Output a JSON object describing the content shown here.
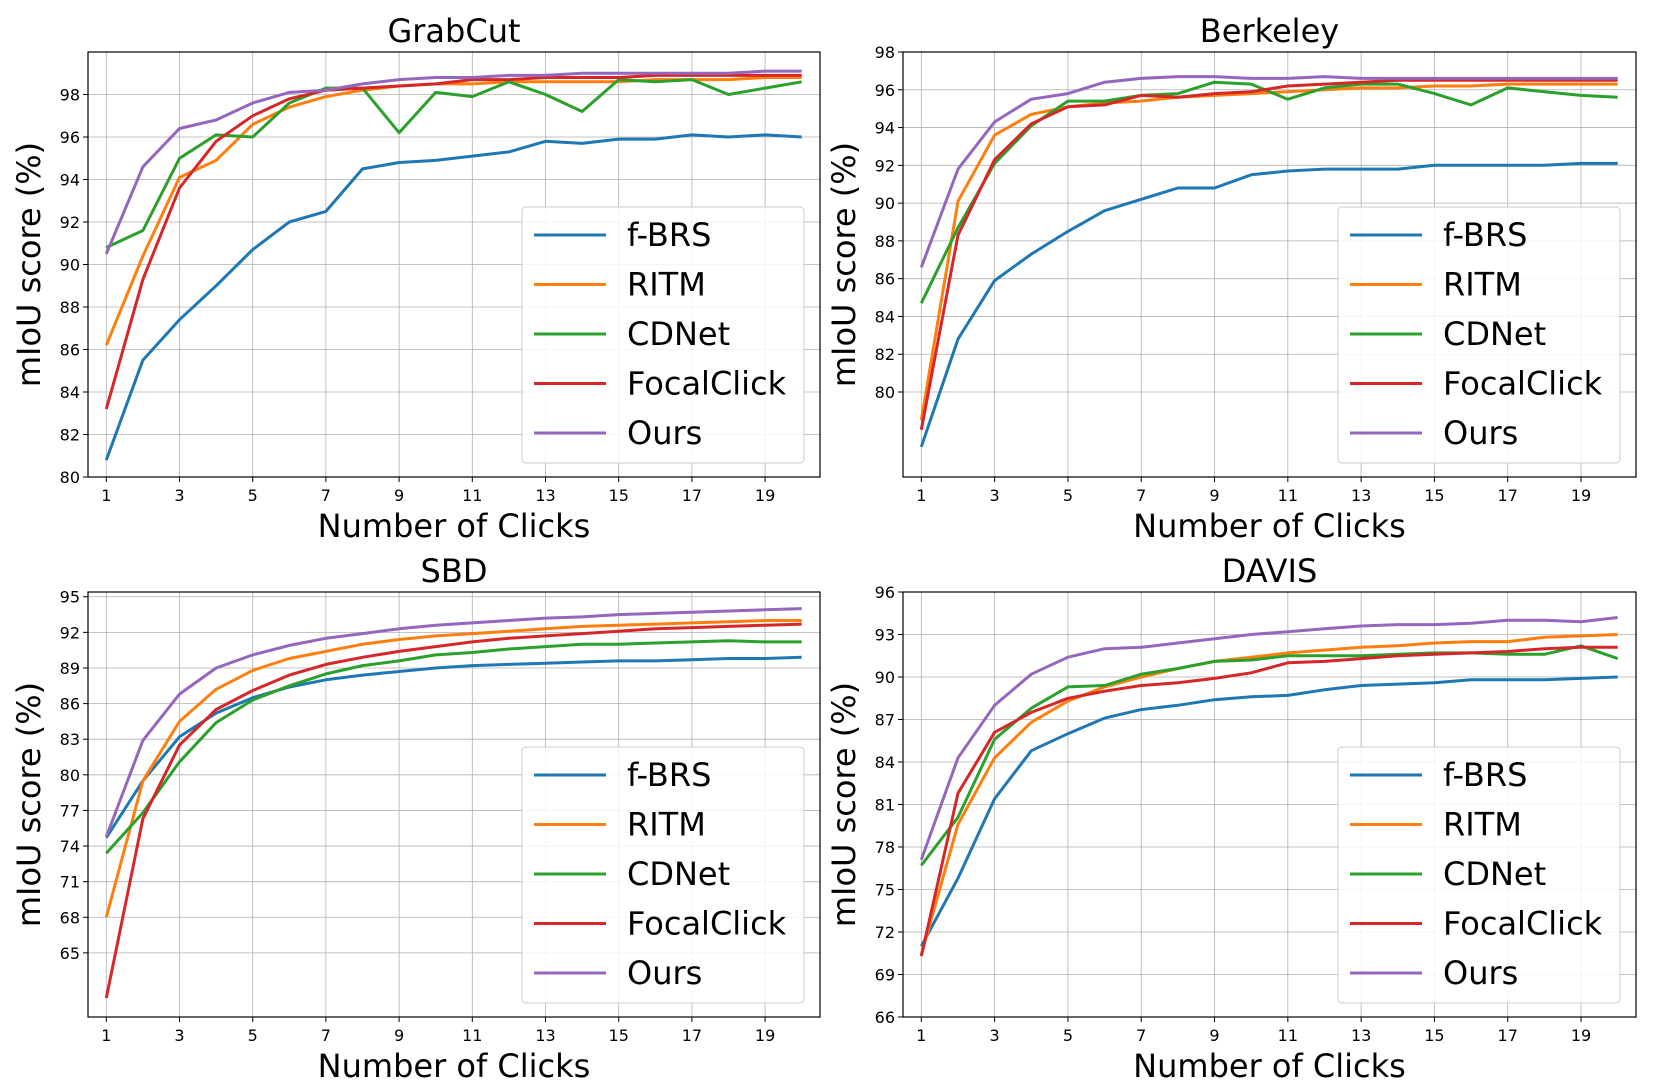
{
  "colors": {
    "f-BRS": "#1f77b4",
    "RITM": "#ff7f0e",
    "CDNet": "#2ca02c",
    "FocalClick": "#d62728",
    "Ours": "#9467bd"
  },
  "chart_data": [
    {
      "type": "line",
      "title": "GrabCut",
      "xlabel": "Number of Clicks",
      "ylabel": "mIoU score (%)",
      "xlim": [
        0.5,
        20.5
      ],
      "ylim": [
        80,
        100
      ],
      "xticks": [
        1,
        3,
        5,
        7,
        9,
        11,
        13,
        15,
        17,
        19
      ],
      "yticks": [
        80,
        82,
        84,
        86,
        88,
        90,
        92,
        94,
        96,
        98
      ],
      "grid": true,
      "legend_position": "lower-right",
      "x": [
        1,
        2,
        3,
        4,
        5,
        6,
        7,
        8,
        9,
        10,
        11,
        12,
        13,
        14,
        15,
        16,
        17,
        18,
        19,
        20
      ],
      "series": [
        {
          "name": "f-BRS",
          "values": [
            80.8,
            85.5,
            87.4,
            89.0,
            90.7,
            92.0,
            92.5,
            94.5,
            94.8,
            94.9,
            95.1,
            95.3,
            95.8,
            95.7,
            95.9,
            95.9,
            96.1,
            96.0,
            96.1,
            96.0
          ]
        },
        {
          "name": "RITM",
          "values": [
            86.2,
            90.4,
            94.1,
            94.9,
            96.6,
            97.4,
            97.9,
            98.2,
            98.4,
            98.5,
            98.5,
            98.6,
            98.6,
            98.6,
            98.6,
            98.7,
            98.7,
            98.7,
            98.8,
            98.8
          ]
        },
        {
          "name": "CDNet",
          "values": [
            90.8,
            91.6,
            95.0,
            96.1,
            96.0,
            97.6,
            98.3,
            98.3,
            96.2,
            98.1,
            97.9,
            98.6,
            98.0,
            97.2,
            98.7,
            98.6,
            98.7,
            98.0,
            98.3,
            98.6
          ]
        },
        {
          "name": "FocalClick",
          "values": [
            83.2,
            89.3,
            93.6,
            95.8,
            97.0,
            97.8,
            98.2,
            98.3,
            98.4,
            98.5,
            98.7,
            98.7,
            98.8,
            98.8,
            98.8,
            98.9,
            98.9,
            98.9,
            98.9,
            98.9
          ]
        },
        {
          "name": "Ours",
          "values": [
            90.5,
            94.6,
            96.4,
            96.8,
            97.6,
            98.1,
            98.2,
            98.5,
            98.7,
            98.8,
            98.8,
            98.9,
            98.9,
            99.0,
            99.0,
            99.0,
            99.0,
            99.0,
            99.1,
            99.1
          ]
        }
      ]
    },
    {
      "type": "line",
      "title": "Berkeley",
      "xlabel": "Number of Clicks",
      "ylabel": "mIoU score (%)",
      "xlim": [
        0.5,
        20.5
      ],
      "ylim": [
        75.5,
        98
      ],
      "xticks": [
        1,
        3,
        5,
        7,
        9,
        11,
        13,
        15,
        17,
        19
      ],
      "yticks": [
        80,
        82,
        84,
        86,
        88,
        90,
        92,
        94,
        96,
        98
      ],
      "grid": true,
      "legend_position": "lower-right",
      "x": [
        1,
        2,
        3,
        4,
        5,
        6,
        7,
        8,
        9,
        10,
        11,
        12,
        13,
        14,
        15,
        16,
        17,
        18,
        19,
        20
      ],
      "series": [
        {
          "name": "f-BRS",
          "values": [
            77.1,
            82.8,
            85.9,
            87.3,
            88.5,
            89.6,
            90.2,
            90.8,
            90.8,
            91.5,
            91.7,
            91.8,
            91.8,
            91.8,
            92.0,
            92.0,
            92.0,
            92.0,
            92.1,
            92.1
          ]
        },
        {
          "name": "RITM",
          "values": [
            78.5,
            90.1,
            93.6,
            94.7,
            95.1,
            95.3,
            95.4,
            95.6,
            95.7,
            95.8,
            95.9,
            96.0,
            96.1,
            96.1,
            96.2,
            96.2,
            96.3,
            96.3,
            96.3,
            96.3
          ]
        },
        {
          "name": "CDNet",
          "values": [
            84.7,
            88.7,
            92.1,
            94.1,
            95.4,
            95.4,
            95.7,
            95.8,
            96.4,
            96.3,
            95.5,
            96.1,
            96.3,
            96.3,
            95.8,
            95.2,
            96.1,
            95.9,
            95.7,
            95.6
          ]
        },
        {
          "name": "FocalClick",
          "values": [
            78.0,
            88.3,
            92.3,
            94.2,
            95.1,
            95.2,
            95.7,
            95.6,
            95.8,
            95.9,
            96.2,
            96.3,
            96.4,
            96.5,
            96.5,
            96.5,
            96.5,
            96.5,
            96.5,
            96.5
          ]
        },
        {
          "name": "Ours",
          "values": [
            86.6,
            91.8,
            94.3,
            95.5,
            95.8,
            96.4,
            96.6,
            96.7,
            96.7,
            96.6,
            96.6,
            96.7,
            96.6,
            96.6,
            96.6,
            96.6,
            96.6,
            96.6,
            96.6,
            96.6
          ]
        }
      ]
    },
    {
      "type": "line",
      "title": "SBD",
      "xlabel": "Number of Clicks",
      "ylabel": "mIoU score (%)",
      "xlim": [
        0.5,
        20.5
      ],
      "ylim": [
        59.6,
        95.4
      ],
      "xticks": [
        1,
        3,
        5,
        7,
        9,
        11,
        13,
        15,
        17,
        19
      ],
      "yticks": [
        65,
        68,
        71,
        74,
        77,
        80,
        83,
        86,
        89,
        92,
        95
      ],
      "grid": true,
      "legend_position": "lower-right",
      "x": [
        1,
        2,
        3,
        4,
        5,
        6,
        7,
        8,
        9,
        10,
        11,
        12,
        13,
        14,
        15,
        16,
        17,
        18,
        19,
        20
      ],
      "series": [
        {
          "name": "f-BRS",
          "values": [
            74.7,
            79.5,
            83.2,
            85.2,
            86.5,
            87.4,
            88.0,
            88.4,
            88.7,
            89.0,
            89.2,
            89.3,
            89.4,
            89.5,
            89.6,
            89.6,
            89.7,
            89.8,
            89.8,
            89.9
          ]
        },
        {
          "name": "RITM",
          "values": [
            68.0,
            79.5,
            84.5,
            87.2,
            88.8,
            89.8,
            90.4,
            91.0,
            91.4,
            91.7,
            91.9,
            92.1,
            92.3,
            92.5,
            92.6,
            92.7,
            92.8,
            92.9,
            93.0,
            93.0
          ]
        },
        {
          "name": "CDNet",
          "values": [
            73.4,
            76.8,
            81.1,
            84.4,
            86.3,
            87.5,
            88.5,
            89.2,
            89.6,
            90.1,
            90.3,
            90.6,
            90.8,
            91.0,
            91.0,
            91.1,
            91.2,
            91.3,
            91.2,
            91.2
          ]
        },
        {
          "name": "FocalClick",
          "values": [
            61.2,
            76.3,
            82.5,
            85.5,
            87.1,
            88.4,
            89.3,
            89.9,
            90.4,
            90.8,
            91.2,
            91.5,
            91.7,
            91.9,
            92.1,
            92.3,
            92.4,
            92.5,
            92.6,
            92.7
          ]
        },
        {
          "name": "Ours",
          "values": [
            74.8,
            82.9,
            86.8,
            89.0,
            90.1,
            90.9,
            91.5,
            91.9,
            92.3,
            92.6,
            92.8,
            93.0,
            93.2,
            93.3,
            93.5,
            93.6,
            93.7,
            93.8,
            93.9,
            94.0
          ]
        }
      ]
    },
    {
      "type": "line",
      "title": "DAVIS",
      "xlabel": "Number of Clicks",
      "ylabel": "mIoU score (%)",
      "xlim": [
        0.5,
        20.5
      ],
      "ylim": [
        66,
        96
      ],
      "xticks": [
        1,
        3,
        5,
        7,
        9,
        11,
        13,
        15,
        17,
        19
      ],
      "yticks": [
        66,
        69,
        72,
        75,
        78,
        81,
        84,
        87,
        90,
        93,
        96
      ],
      "grid": true,
      "legend_position": "lower-right",
      "x": [
        1,
        2,
        3,
        4,
        5,
        6,
        7,
        8,
        9,
        10,
        11,
        12,
        13,
        14,
        15,
        16,
        17,
        18,
        19,
        20
      ],
      "series": [
        {
          "name": "f-BRS",
          "values": [
            71.0,
            75.8,
            81.4,
            84.8,
            86.0,
            87.1,
            87.7,
            88.0,
            88.4,
            88.6,
            88.7,
            89.1,
            89.4,
            89.5,
            89.6,
            89.8,
            89.8,
            89.8,
            89.9,
            90.0
          ]
        },
        {
          "name": "RITM",
          "values": [
            70.4,
            79.6,
            84.3,
            86.8,
            88.3,
            89.3,
            90.0,
            90.6,
            91.1,
            91.4,
            91.7,
            91.9,
            92.1,
            92.2,
            92.4,
            92.5,
            92.5,
            92.8,
            92.9,
            93.0
          ]
        },
        {
          "name": "CDNet",
          "values": [
            76.7,
            80.1,
            85.6,
            87.8,
            89.3,
            89.4,
            90.2,
            90.6,
            91.1,
            91.2,
            91.5,
            91.5,
            91.5,
            91.6,
            91.7,
            91.7,
            91.6,
            91.6,
            92.2,
            91.3
          ]
        },
        {
          "name": "FocalClick",
          "values": [
            70.3,
            81.8,
            86.1,
            87.5,
            88.5,
            89.0,
            89.4,
            89.6,
            89.9,
            90.3,
            91.0,
            91.1,
            91.3,
            91.5,
            91.6,
            91.7,
            91.8,
            92.0,
            92.1,
            92.1
          ]
        },
        {
          "name": "Ours",
          "values": [
            77.1,
            84.3,
            88.0,
            90.2,
            91.4,
            92.0,
            92.1,
            92.4,
            92.7,
            93.0,
            93.2,
            93.4,
            93.6,
            93.7,
            93.7,
            93.8,
            94.0,
            94.0,
            93.9,
            94.2
          ]
        }
      ]
    }
  ]
}
